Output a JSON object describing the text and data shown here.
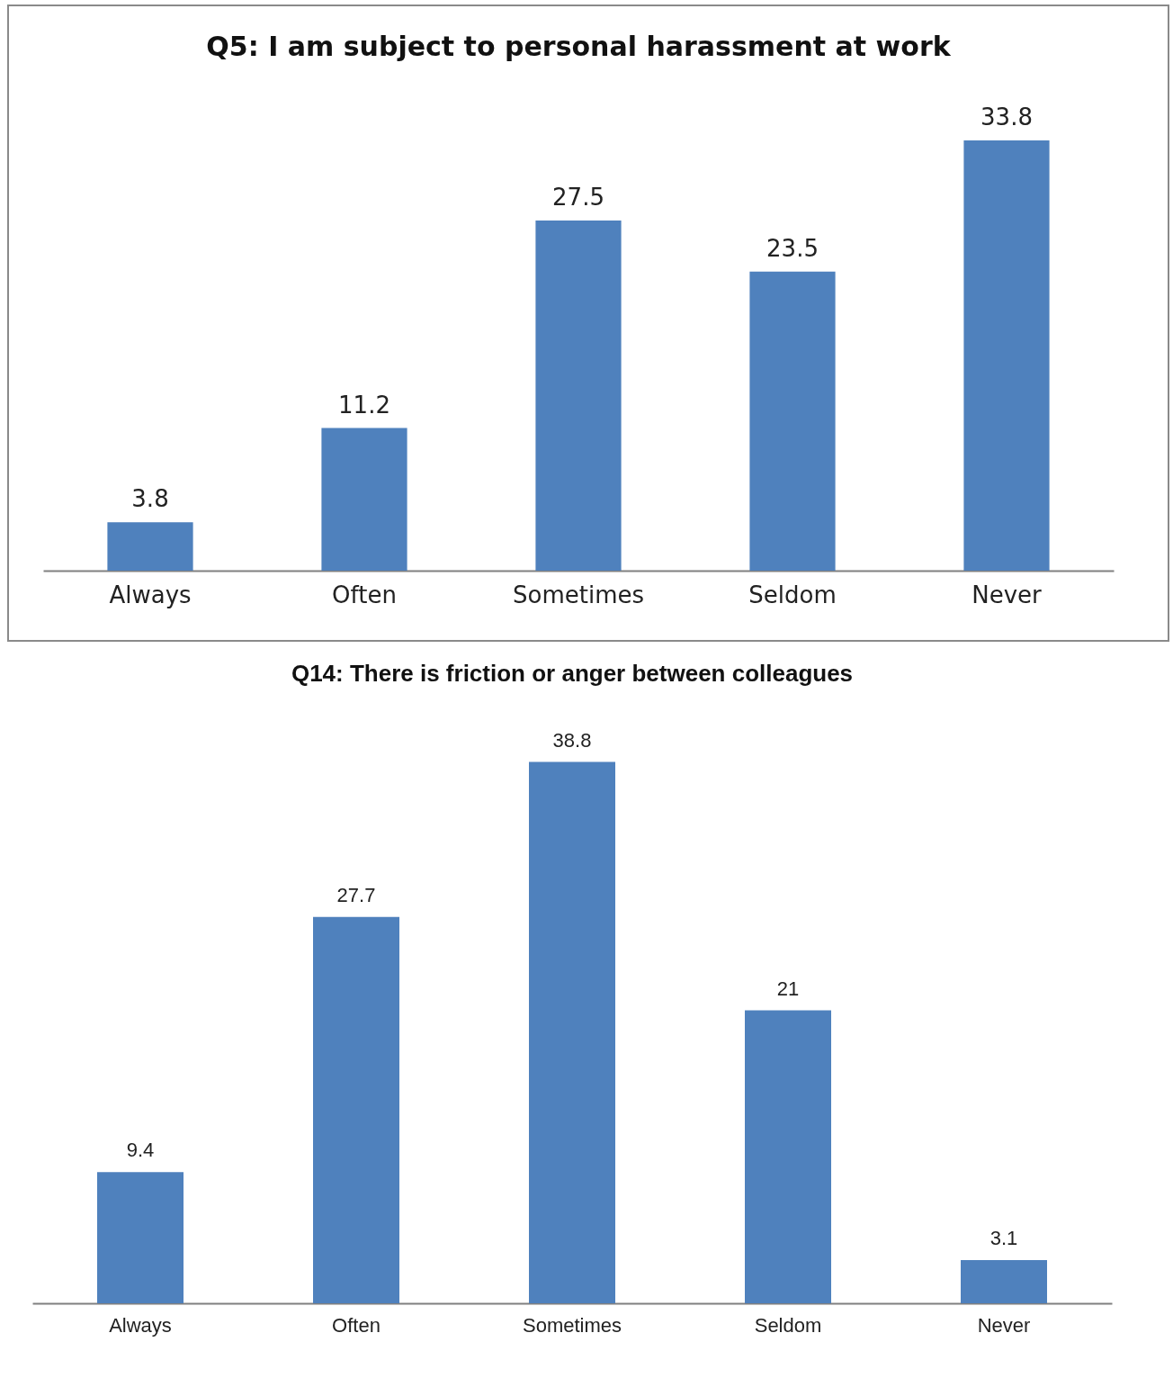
{
  "chart_data": [
    {
      "type": "bar",
      "title": "Q5: I am subject to personal harassment at work",
      "categories": [
        "Always",
        "Often",
        "Sometimes",
        "Seldom",
        "Never"
      ],
      "values": [
        3.8,
        11.2,
        27.5,
        23.5,
        33.8
      ],
      "color": "#4f81bd",
      "data_labels": true
    },
    {
      "type": "bar",
      "title": "Q14: There is friction or anger between colleagues",
      "categories": [
        "Always",
        "Often",
        "Sometimes",
        "Seldom",
        "Never"
      ],
      "values": [
        9.4,
        27.7,
        38.8,
        21,
        3.1
      ],
      "color": "#4f81bd",
      "data_labels": true
    }
  ]
}
